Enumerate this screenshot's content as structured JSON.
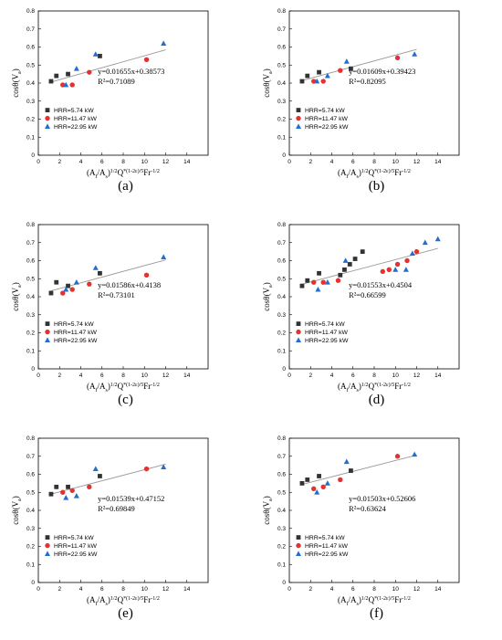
{
  "chart_data": [
    {
      "panel": "(a)",
      "type": "scatter",
      "xlim": [
        0,
        16
      ],
      "ylim": [
        0,
        0.8
      ],
      "xticks": [
        0,
        2,
        4,
        6,
        8,
        10,
        12,
        14
      ],
      "yticks": [
        0,
        0.1,
        0.2,
        0.3,
        0.4,
        0.5,
        0.6,
        0.7,
        0.8
      ],
      "ylabel": "cosθ(V_a)",
      "xlabel": "(A_f/A_s)^{1/2}Q^{*(1-2ε)/5}Fr^{-1/2}",
      "series": [
        {
          "name": "HRR=5.74 kW",
          "marker": "square",
          "color": "#333333",
          "x": [
            1.2,
            1.7,
            2.8,
            5.8
          ],
          "y": [
            0.41,
            0.44,
            0.45,
            0.55
          ]
        },
        {
          "name": "HRR=11.47 kW",
          "marker": "circle",
          "color": "#e8302f",
          "x": [
            2.3,
            3.2,
            4.8,
            10.2
          ],
          "y": [
            0.39,
            0.39,
            0.46,
            0.53
          ]
        },
        {
          "name": "HRR=22.95 kW",
          "marker": "triangle",
          "color": "#1f6fd1",
          "x": [
            2.6,
            3.6,
            5.4,
            11.8
          ],
          "y": [
            0.39,
            0.48,
            0.56,
            0.62
          ]
        }
      ],
      "fit": {
        "slope": 0.01655,
        "intercept": 0.38573,
        "x_range": [
          1,
          12
        ]
      },
      "equation": "y=0.01655x+0.38573",
      "r2": "R²=0.71089",
      "legend_position": "bottom-left"
    },
    {
      "panel": "(b)",
      "type": "scatter",
      "xlim": [
        0,
        16
      ],
      "ylim": [
        0,
        0.8
      ],
      "xticks": [
        0,
        2,
        4,
        6,
        8,
        10,
        12,
        14
      ],
      "yticks": [
        0,
        0.1,
        0.2,
        0.3,
        0.4,
        0.5,
        0.6,
        0.7,
        0.8
      ],
      "ylabel": "cosθ(V_a)",
      "xlabel": "(A_f/A_s)^{1/2}Q^{*(1-2ε)/5}Fr^{-1/2}",
      "series": [
        {
          "name": "HRR=5.74 kW",
          "marker": "square",
          "color": "#333333",
          "x": [
            1.2,
            1.7,
            2.8,
            5.8
          ],
          "y": [
            0.41,
            0.44,
            0.46,
            0.48
          ]
        },
        {
          "name": "HRR=11.47 kW",
          "marker": "circle",
          "color": "#e8302f",
          "x": [
            2.3,
            3.2,
            4.8,
            10.2
          ],
          "y": [
            0.41,
            0.41,
            0.47,
            0.54
          ]
        },
        {
          "name": "HRR=22.95 kW",
          "marker": "triangle",
          "color": "#1f6fd1",
          "x": [
            2.6,
            3.6,
            5.4,
            11.8
          ],
          "y": [
            0.41,
            0.44,
            0.52,
            0.56
          ]
        }
      ],
      "fit": {
        "slope": 0.01609,
        "intercept": 0.39423,
        "x_range": [
          1,
          12
        ]
      },
      "equation": "y=0.01609x+0.39423",
      "r2": "R²=0.82095",
      "legend_position": "bottom-left"
    },
    {
      "panel": "(c)",
      "type": "scatter",
      "xlim": [
        0,
        16
      ],
      "ylim": [
        0,
        0.8
      ],
      "xticks": [
        0,
        2,
        4,
        6,
        8,
        10,
        12,
        14
      ],
      "yticks": [
        0,
        0.1,
        0.2,
        0.3,
        0.4,
        0.5,
        0.6,
        0.7,
        0.8
      ],
      "ylabel": "cosθ(V_a)",
      "xlabel": "(A_f/A_s)^{1/2}Q^{*(1-2ε)/5}Fr^{-1/2}",
      "series": [
        {
          "name": "HRR=5.74 kW",
          "marker": "square",
          "color": "#333333",
          "x": [
            1.2,
            1.7,
            2.8,
            5.8
          ],
          "y": [
            0.42,
            0.48,
            0.46,
            0.53
          ]
        },
        {
          "name": "HRR=11.47 kW",
          "marker": "circle",
          "color": "#e8302f",
          "x": [
            2.3,
            3.2,
            4.8,
            10.2
          ],
          "y": [
            0.42,
            0.44,
            0.47,
            0.52
          ]
        },
        {
          "name": "HRR=22.95 kW",
          "marker": "triangle",
          "color": "#1f6fd1",
          "x": [
            2.6,
            3.6,
            5.4,
            11.8
          ],
          "y": [
            0.44,
            0.48,
            0.56,
            0.62
          ]
        }
      ],
      "fit": {
        "slope": 0.01586,
        "intercept": 0.4138,
        "x_range": [
          1,
          12
        ]
      },
      "equation": "y=0.01586x+0.4138",
      "r2": "R²=0.73101",
      "legend_position": "bottom-left"
    },
    {
      "panel": "(d)",
      "type": "scatter",
      "xlim": [
        0,
        16
      ],
      "ylim": [
        0,
        0.8
      ],
      "xticks": [
        0,
        2,
        4,
        6,
        8,
        10,
        12,
        14
      ],
      "yticks": [
        0,
        0.1,
        0.2,
        0.3,
        0.4,
        0.5,
        0.6,
        0.7,
        0.8
      ],
      "ylabel": "cosθ(V_a)",
      "xlabel": "(A_f/A_s)^{1/2}Q^{*(1-2ε)/5}Fr^{-1/2}",
      "series": [
        {
          "name": "HRR=5.74 kW",
          "marker": "square",
          "color": "#333333",
          "x": [
            1.2,
            1.7,
            2.8,
            4.8,
            5.2,
            5.7,
            6.2,
            6.9
          ],
          "y": [
            0.46,
            0.49,
            0.53,
            0.52,
            0.55,
            0.58,
            0.61,
            0.65
          ]
        },
        {
          "name": "HRR=11.47 kW",
          "marker": "circle",
          "color": "#e8302f",
          "x": [
            2.3,
            3.2,
            4.6,
            8.8,
            9.4,
            10.2,
            11.1,
            12.0
          ],
          "y": [
            0.48,
            0.48,
            0.49,
            0.54,
            0.55,
            0.58,
            0.6,
            0.65
          ]
        },
        {
          "name": "HRR=22.95 kW",
          "marker": "triangle",
          "color": "#1f6fd1",
          "x": [
            2.7,
            3.6,
            5.3,
            10.0,
            11.0,
            11.6,
            12.8,
            14.0
          ],
          "y": [
            0.44,
            0.48,
            0.6,
            0.55,
            0.55,
            0.64,
            0.7,
            0.72
          ]
        }
      ],
      "fit": {
        "slope": 0.01553,
        "intercept": 0.4504,
        "x_range": [
          1,
          14
        ]
      },
      "equation": "y=0.01553x+0.4504",
      "r2": "R²=0.66599",
      "legend_position": "bottom-left"
    },
    {
      "panel": "(e)",
      "type": "scatter",
      "xlim": [
        0,
        16
      ],
      "ylim": [
        0,
        0.8
      ],
      "xticks": [
        0,
        2,
        4,
        6,
        8,
        10,
        12,
        14
      ],
      "yticks": [
        0,
        0.1,
        0.2,
        0.3,
        0.4,
        0.5,
        0.6,
        0.7,
        0.8
      ],
      "ylabel": "cosθ(V_a)",
      "xlabel": "(A_f/A_s)^{1/2}Q^{*(1-2ε)/5}Fr^{-1/2}",
      "series": [
        {
          "name": "HRR=5.74 kW",
          "marker": "square",
          "color": "#333333",
          "x": [
            1.2,
            1.7,
            2.8,
            5.8
          ],
          "y": [
            0.49,
            0.53,
            0.53,
            0.59
          ]
        },
        {
          "name": "HRR=11.47 kW",
          "marker": "circle",
          "color": "#e8302f",
          "x": [
            2.3,
            3.2,
            4.8,
            10.2
          ],
          "y": [
            0.5,
            0.51,
            0.53,
            0.63
          ]
        },
        {
          "name": "HRR=22.95 kW",
          "marker": "triangle",
          "color": "#1f6fd1",
          "x": [
            2.6,
            3.6,
            5.4,
            11.8
          ],
          "y": [
            0.47,
            0.48,
            0.63,
            0.64
          ]
        }
      ],
      "fit": {
        "slope": 0.01539,
        "intercept": 0.47152,
        "x_range": [
          1,
          12
        ]
      },
      "equation": "y=0.01539x+0.47152",
      "r2": "R²=0.69849",
      "legend_position": "bottom-left"
    },
    {
      "panel": "(f)",
      "type": "scatter",
      "xlim": [
        0,
        16
      ],
      "ylim": [
        0,
        0.8
      ],
      "xticks": [
        0,
        2,
        4,
        6,
        8,
        10,
        12,
        14
      ],
      "yticks": [
        0,
        0.1,
        0.2,
        0.3,
        0.4,
        0.5,
        0.6,
        0.7,
        0.8
      ],
      "ylabel": "cosθ(V_a)",
      "xlabel": "(A_f/A_s)^{1/2}Q^{*(1-2ε)/5}Fr^{-1/2}",
      "series": [
        {
          "name": "HRR=5.74 kW",
          "marker": "square",
          "color": "#333333",
          "x": [
            1.2,
            1.7,
            2.8,
            5.8
          ],
          "y": [
            0.55,
            0.57,
            0.59,
            0.62
          ]
        },
        {
          "name": "HRR=11.47 kW",
          "marker": "circle",
          "color": "#e8302f",
          "x": [
            2.3,
            3.2,
            4.8,
            10.2
          ],
          "y": [
            0.52,
            0.53,
            0.57,
            0.7
          ]
        },
        {
          "name": "HRR=22.95 kW",
          "marker": "triangle",
          "color": "#1f6fd1",
          "x": [
            2.6,
            3.6,
            5.4,
            11.8
          ],
          "y": [
            0.5,
            0.55,
            0.67,
            0.71
          ]
        }
      ],
      "fit": {
        "slope": 0.01503,
        "intercept": 0.52606,
        "x_range": [
          1,
          12
        ]
      },
      "equation": "y=0.01503x+0.52606",
      "r2": "R²=0.63624",
      "legend_position": "bottom-left"
    }
  ]
}
